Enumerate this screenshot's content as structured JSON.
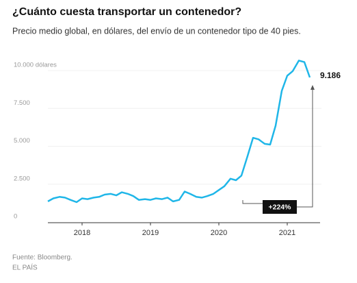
{
  "chart_data": {
    "type": "line",
    "title": "¿Cuánto cuesta transportar un contenedor?",
    "subtitle": "Precio medio global, en dólares, del envío de un contenedor tipo de 40 pies.",
    "source": "Fuente: Bloomberg.",
    "publisher": "EL PAÍS",
    "x": [
      2018.0,
      2018.08,
      2018.17,
      2018.25,
      2018.33,
      2018.42,
      2018.5,
      2018.58,
      2018.67,
      2018.75,
      2018.83,
      2018.92,
      2019.0,
      2019.08,
      2019.17,
      2019.25,
      2019.33,
      2019.42,
      2019.5,
      2019.58,
      2019.67,
      2019.75,
      2019.83,
      2019.92,
      2020.0,
      2020.08,
      2020.17,
      2020.25,
      2020.33,
      2020.42,
      2020.5,
      2020.58,
      2020.67,
      2020.75,
      2020.83,
      2020.92,
      2021.0,
      2021.08,
      2021.17,
      2021.25,
      2021.33,
      2021.42,
      2021.5,
      2021.58,
      2021.67,
      2021.75,
      2021.83
    ],
    "series": [
      {
        "color": "#1fb6e8",
        "values": [
          1000,
          1200,
          1300,
          1250,
          1100,
          950,
          1200,
          1150,
          1250,
          1300,
          1450,
          1500,
          1400,
          1600,
          1500,
          1350,
          1100,
          1150,
          1100,
          1200,
          1150,
          1250,
          1000,
          1100,
          1650,
          1500,
          1300,
          1250,
          1350,
          1500,
          1750,
          2000,
          2500,
          2400,
          2700,
          4000,
          5200,
          5100,
          4800,
          4750,
          6000,
          8300,
          9300,
          9600,
          10300,
          10200,
          9186
        ]
      }
    ],
    "end_label": "9.186",
    "change_label": "+224%",
    "xlim": [
      2018,
      2022
    ],
    "xticks": [
      {
        "value": 2018.5,
        "label": "2018"
      },
      {
        "value": 2019.5,
        "label": "2019"
      },
      {
        "value": 2020.5,
        "label": "2020"
      },
      {
        "value": 2021.5,
        "label": "2021"
      }
    ],
    "ylim": [
      0,
      10000
    ],
    "yticks": [
      0,
      {
        "value": 2500,
        "label": "2.500"
      },
      {
        "value": 5000,
        "label": "5.000"
      },
      {
        "value": 7500,
        "label": "7.500"
      },
      {
        "value": 10000,
        "label": "10.000 dólares"
      }
    ],
    "grid": true
  }
}
